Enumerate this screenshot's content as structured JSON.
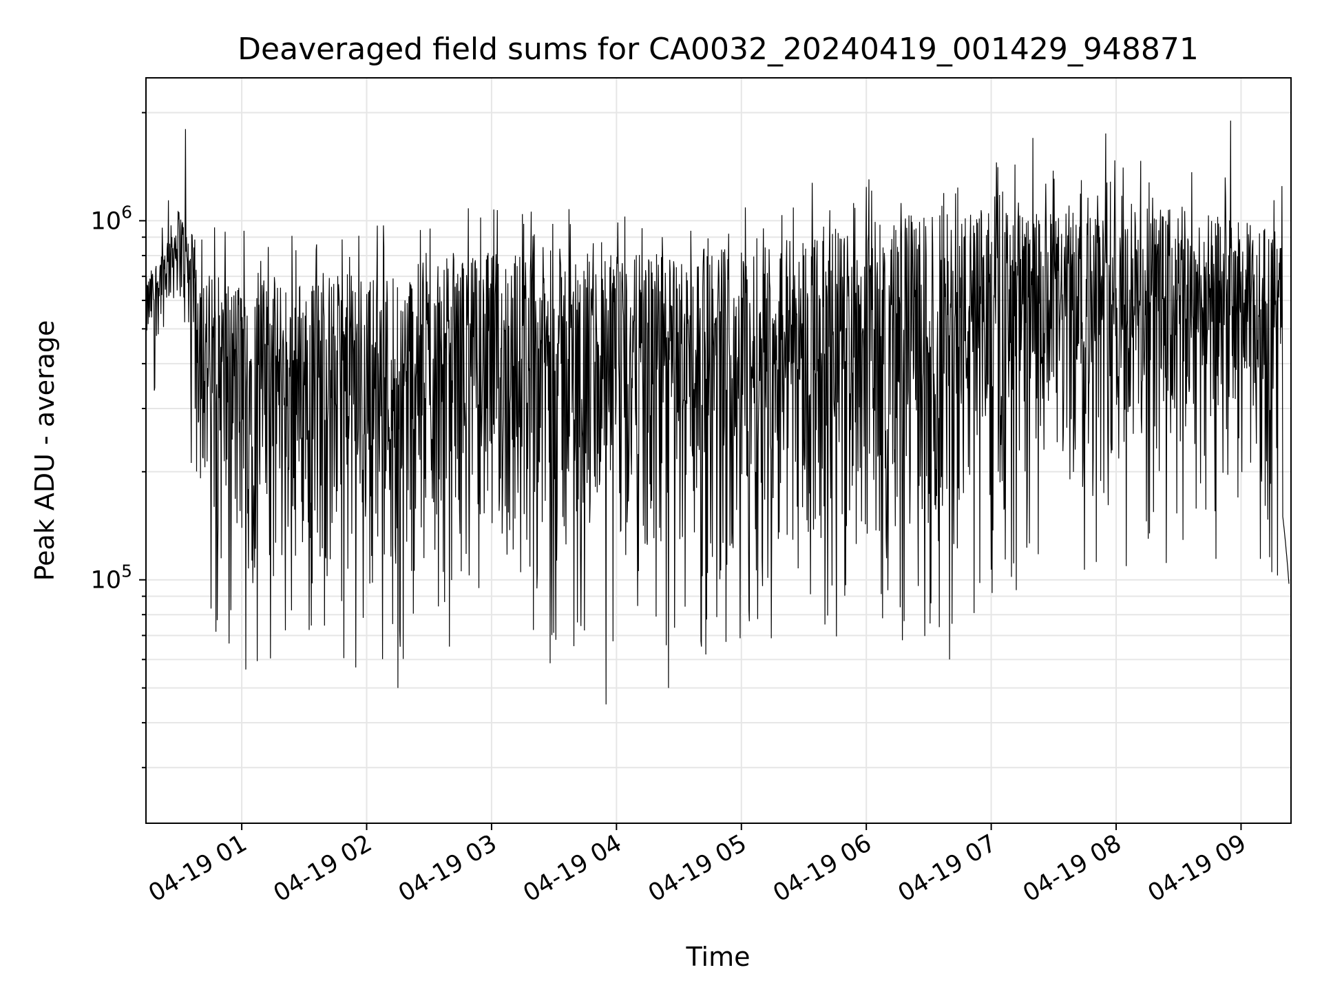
{
  "chart_data": {
    "type": "line",
    "title": "Deaveraged field sums for CA0032_20240419_001429_948871",
    "xlabel": "Time",
    "ylabel": "Peak ADU - average",
    "xlim": [
      "2024-04-19 00:14",
      "2024-04-19 09:24"
    ],
    "ylim": [
      21000,
      2500000
    ],
    "yscale": "log",
    "grid": true,
    "line_color": "#000000",
    "x_ticks": [
      "04-19 01",
      "04-19 02",
      "04-19 03",
      "04-19 04",
      "04-19 05",
      "04-19 06",
      "04-19 07",
      "04-19 08",
      "04-19 09"
    ],
    "y_ticks": [
      {
        "value": 100000,
        "base": "10",
        "exp": "5"
      },
      {
        "value": 1000000,
        "base": "10",
        "exp": "6"
      }
    ],
    "series_envelope": {
      "x": [
        "2024-04-19 00:15",
        "2024-04-19 00:30",
        "2024-04-19 00:45",
        "2024-04-19 01:00",
        "2024-04-19 01:30",
        "2024-04-19 02:00",
        "2024-04-19 02:30",
        "2024-04-19 03:00",
        "2024-04-19 03:30",
        "2024-04-19 04:00",
        "2024-04-19 04:30",
        "2024-04-19 05:00",
        "2024-04-19 05:30",
        "2024-04-19 06:00",
        "2024-04-19 06:30",
        "2024-04-19 07:00",
        "2024-04-19 07:30",
        "2024-04-19 08:00",
        "2024-04-19 08:30",
        "2024-04-19 09:00",
        "2024-04-19 09:20"
      ],
      "upper": [
        700000,
        1100000,
        720000,
        700000,
        700000,
        720000,
        780000,
        820000,
        850000,
        800000,
        820000,
        880000,
        950000,
        1000000,
        1050000,
        1100000,
        1050000,
        1100000,
        1100000,
        1000000,
        950000
      ],
      "lower": [
        400000,
        600000,
        90000,
        80000,
        85000,
        80000,
        85000,
        85000,
        80000,
        75000,
        85000,
        90000,
        95000,
        100000,
        90000,
        110000,
        140000,
        150000,
        160000,
        160000,
        120000
      ],
      "min_spikes": [
        {
          "x": "2024-04-19 03:55",
          "y": 45000
        },
        {
          "x": "2024-04-19 02:15",
          "y": 50000
        },
        {
          "x": "2024-04-19 04:25",
          "y": 50000
        },
        {
          "x": "2024-04-19 06:40",
          "y": 60000
        }
      ],
      "max_spikes": [
        {
          "x": "2024-04-19 00:33",
          "y": 1800000
        },
        {
          "x": "2024-04-19 08:55",
          "y": 1900000
        },
        {
          "x": "2024-04-19 07:55",
          "y": 1750000
        },
        {
          "x": "2024-04-19 07:20",
          "y": 1700000
        }
      ]
    }
  }
}
